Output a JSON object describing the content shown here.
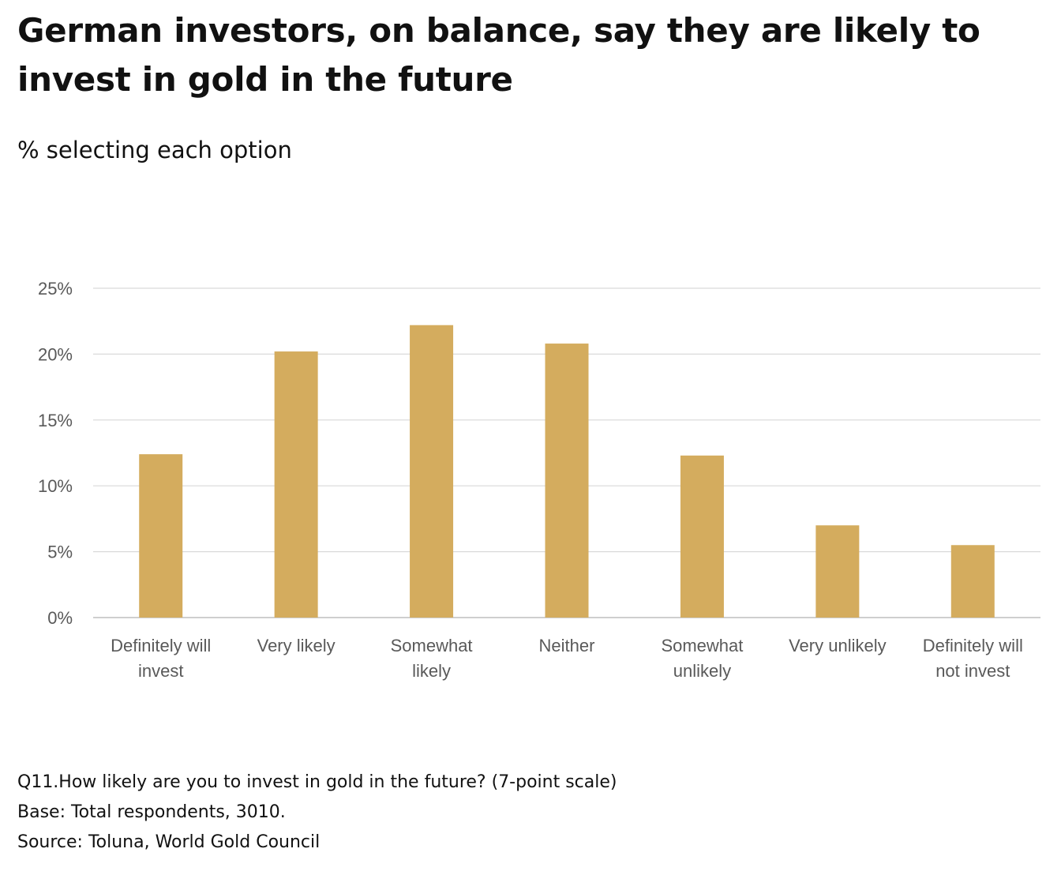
{
  "title": "German investors, on balance, say they are likely to invest in gold in the future",
  "subtitle": "% selecting each option",
  "footnotes": {
    "question": "Q11.How likely are you to invest in gold in the future? (7-point scale)",
    "base": "Base: Total respondents, 3010.",
    "source": "Source: Toluna, World Gold Council"
  },
  "chart_data": {
    "type": "bar",
    "categories": [
      [
        "Definitely will",
        "invest"
      ],
      [
        "Very likely"
      ],
      [
        "Somewhat",
        "likely"
      ],
      [
        "Neither"
      ],
      [
        "Somewhat",
        "unlikely"
      ],
      [
        "Very unlikely"
      ],
      [
        "Definitely will",
        "not invest"
      ]
    ],
    "values": [
      12.4,
      20.2,
      22.2,
      20.8,
      12.3,
      7.0,
      5.5
    ],
    "ylim": [
      0,
      25
    ],
    "yticks": [
      0,
      5,
      10,
      15,
      20,
      25
    ],
    "ytick_labels": [
      "0%",
      "5%",
      "10%",
      "15%",
      "20%",
      "25%"
    ],
    "xlabel": "",
    "ylabel": "",
    "grid": true,
    "legend": "none",
    "bar_color": "#D4AC5E",
    "grid_color": "#D9D9D9",
    "axis_color": "#BFBFBF"
  }
}
